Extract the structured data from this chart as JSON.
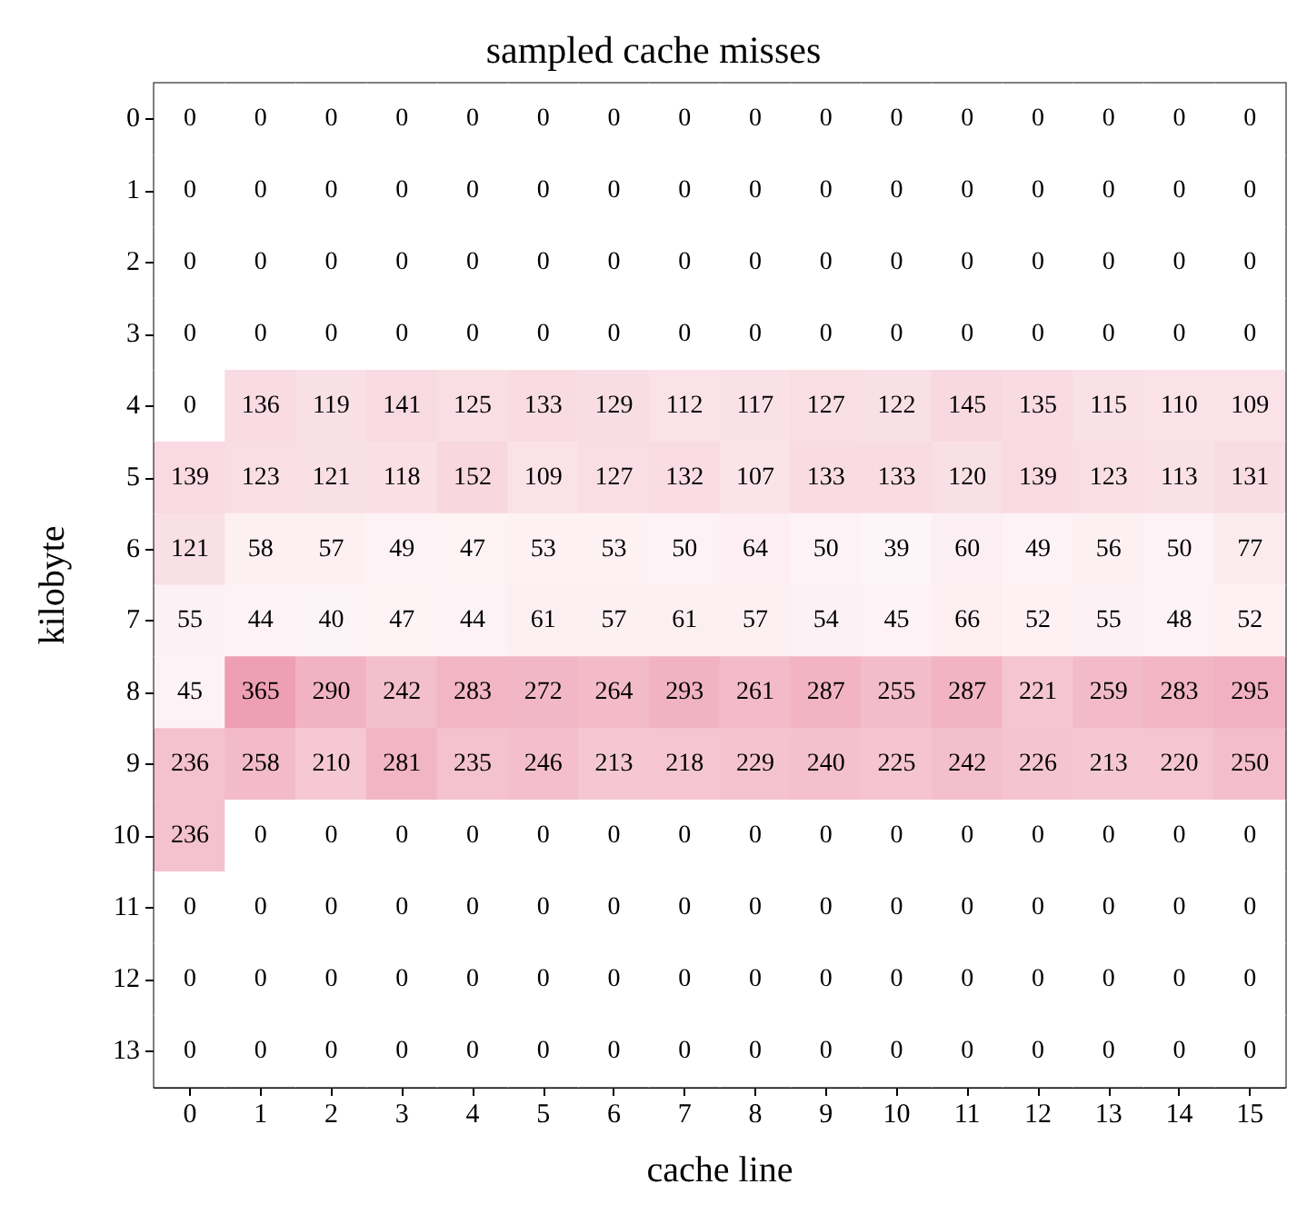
{
  "chart_data": {
    "type": "heatmap",
    "title": "sampled cache misses",
    "xlabel": "cache line",
    "ylabel": "kilobyte",
    "color": "#ee9fb3",
    "categories": [
      "0",
      "1",
      "2",
      "3",
      "4",
      "5",
      "6",
      "7",
      "8",
      "9",
      "10",
      "11",
      "12",
      "13",
      "14",
      "15"
    ],
    "y_categories": [
      "0",
      "1",
      "2",
      "3",
      "4",
      "5",
      "6",
      "7",
      "8",
      "9",
      "10",
      "11",
      "12",
      "13"
    ],
    "cells": [
      [
        0,
        0,
        0,
        0,
        0,
        0,
        0,
        0,
        0,
        0,
        0,
        0,
        0,
        0,
        0,
        0
      ],
      [
        0,
        0,
        0,
        0,
        0,
        0,
        0,
        0,
        0,
        0,
        0,
        0,
        0,
        0,
        0,
        0
      ],
      [
        0,
        0,
        0,
        0,
        0,
        0,
        0,
        0,
        0,
        0,
        0,
        0,
        0,
        0,
        0,
        0
      ],
      [
        0,
        0,
        0,
        0,
        0,
        0,
        0,
        0,
        0,
        0,
        0,
        0,
        0,
        0,
        0,
        0
      ],
      [
        0,
        136,
        119,
        141,
        125,
        133,
        129,
        112,
        117,
        127,
        122,
        145,
        135,
        115,
        110,
        109
      ],
      [
        139,
        123,
        121,
        118,
        152,
        109,
        127,
        132,
        107,
        133,
        133,
        120,
        139,
        123,
        113,
        131
      ],
      [
        121,
        58,
        57,
        49,
        47,
        53,
        53,
        50,
        64,
        50,
        39,
        60,
        49,
        56,
        50,
        77
      ],
      [
        55,
        44,
        40,
        47,
        44,
        61,
        57,
        61,
        57,
        54,
        45,
        66,
        52,
        55,
        48,
        52
      ],
      [
        45,
        365,
        290,
        242,
        283,
        272,
        264,
        293,
        261,
        287,
        255,
        287,
        221,
        259,
        283,
        295
      ],
      [
        236,
        258,
        210,
        281,
        235,
        246,
        213,
        218,
        229,
        240,
        225,
        242,
        226,
        213,
        220,
        250
      ],
      [
        236,
        0,
        0,
        0,
        0,
        0,
        0,
        0,
        0,
        0,
        0,
        0,
        0,
        0,
        0,
        0
      ],
      [
        0,
        0,
        0,
        0,
        0,
        0,
        0,
        0,
        0,
        0,
        0,
        0,
        0,
        0,
        0,
        0
      ],
      [
        0,
        0,
        0,
        0,
        0,
        0,
        0,
        0,
        0,
        0,
        0,
        0,
        0,
        0,
        0,
        0
      ],
      [
        0,
        0,
        0,
        0,
        0,
        0,
        0,
        0,
        0,
        0,
        0,
        0,
        0,
        0,
        0,
        0
      ]
    ],
    "data_labels": true
  }
}
